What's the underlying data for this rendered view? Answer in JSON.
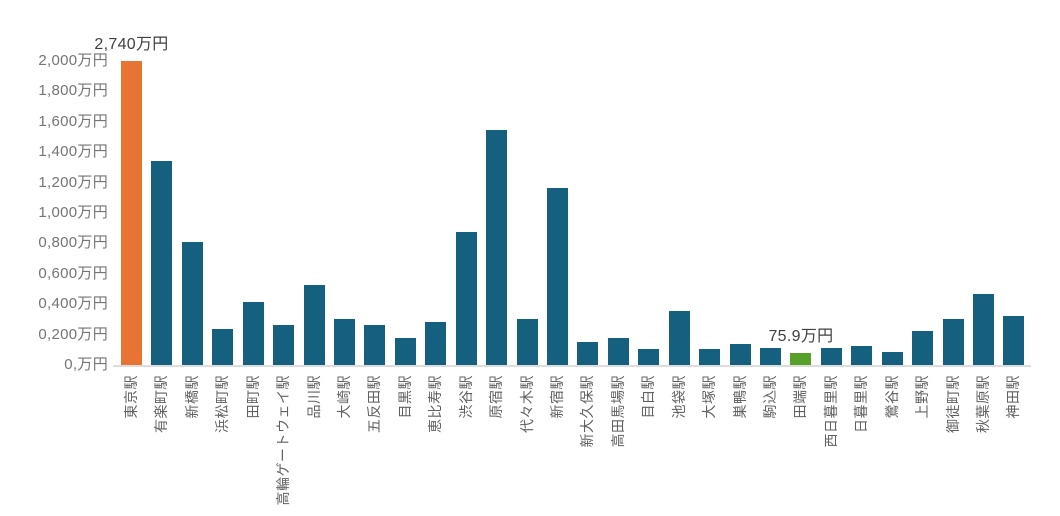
{
  "chart_data": {
    "type": "bar",
    "unit": "万円",
    "categories": [
      "東京駅",
      "有楽町駅",
      "新橋駅",
      "浜松町駅",
      "田町駅",
      "高輪ゲートウェイ駅",
      "品川駅",
      "大崎駅",
      "五反田駅",
      "目黒駅",
      "恵比寿駅",
      "渋谷駅",
      "原宿駅",
      "代々木駅",
      "新宿駅",
      "新大久保駅",
      "高田馬場駅",
      "目白駅",
      "池袋駅",
      "大塚駅",
      "巣鴨駅",
      "駒込駅",
      "田端駅",
      "西日暮里駅",
      "日暮里駅",
      "鶯谷駅",
      "上野駅",
      "御徒町駅",
      "秋葉原駅",
      "神田駅"
    ],
    "values": [
      2740,
      1340,
      810,
      240,
      415,
      265,
      525,
      300,
      260,
      180,
      285,
      875,
      1545,
      305,
      1165,
      150,
      180,
      105,
      355,
      105,
      140,
      115,
      75.9,
      115,
      125,
      85,
      225,
      305,
      465,
      320
    ],
    "y_axis": {
      "min": 0,
      "max": 2000,
      "step": 200,
      "tick_labels": [
        "0,万円",
        "0,200万円",
        "0,400万円",
        "0,600万円",
        "0,800万円",
        "1,000万円",
        "1,200万円",
        "1,400万円",
        "1,600万円",
        "1,800万円",
        "2,000万円"
      ]
    },
    "annotations": [
      {
        "text": "2,740万円",
        "bar_index": 0
      },
      {
        "text": "75.9万円",
        "bar_index": 22
      }
    ],
    "highlighted": {
      "max": {
        "index": 0,
        "category": "東京駅",
        "color": "#e87434"
      },
      "min": {
        "index": 22,
        "category": "田端駅",
        "color": "#56a229"
      }
    },
    "colors": {
      "default_bar": "#16607f",
      "max_bar": "#e87434",
      "min_bar": "#56a229",
      "axis_line": "#dcdcdc",
      "tick_text": "#757575",
      "category_text": "#616161",
      "annotation_text": "#3f3f3f"
    },
    "grid": false,
    "legend": false,
    "title": "",
    "xlabel": "",
    "ylabel": ""
  }
}
